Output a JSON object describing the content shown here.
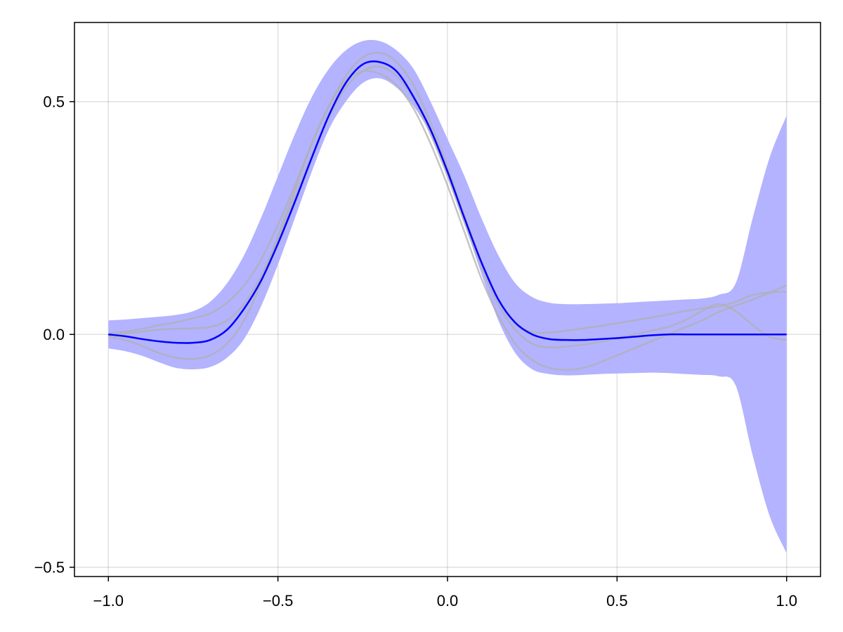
{
  "chart_data": {
    "type": "line",
    "title": "",
    "xlabel": "",
    "ylabel": "",
    "xlim": [
      -1.1,
      1.1
    ],
    "ylim": [
      -0.52,
      0.67
    ],
    "grid": true,
    "x_ticks": [
      -1.0,
      -0.5,
      0.0,
      0.5,
      1.0
    ],
    "x_tick_labels": [
      "−1.0",
      "−0.5",
      "0.0",
      "0.5",
      "1.0"
    ],
    "y_ticks": [
      -0.5,
      0.0,
      0.5
    ],
    "y_tick_labels": [
      "−0.5",
      "0.0",
      "0.5"
    ],
    "colors": {
      "mean": "#0000ff",
      "band": "#b3b3ff",
      "samples": "#b0b0b0"
    },
    "x": [
      -1.0,
      -0.95,
      -0.9,
      -0.85,
      -0.8,
      -0.75,
      -0.7,
      -0.65,
      -0.6,
      -0.55,
      -0.5,
      -0.45,
      -0.4,
      -0.35,
      -0.3,
      -0.25,
      -0.2,
      -0.15,
      -0.1,
      -0.05,
      0.0,
      0.05,
      0.1,
      0.15,
      0.2,
      0.25,
      0.3,
      0.35,
      0.4,
      0.45,
      0.5,
      0.55,
      0.6,
      0.65,
      0.7,
      0.75,
      0.8,
      0.85,
      0.9,
      0.95,
      1.0
    ],
    "band": {
      "upper": [
        0.03,
        0.032,
        0.035,
        0.038,
        0.042,
        0.05,
        0.07,
        0.11,
        0.17,
        0.25,
        0.34,
        0.43,
        0.51,
        0.57,
        0.61,
        0.63,
        0.63,
        0.61,
        0.57,
        0.5,
        0.42,
        0.34,
        0.25,
        0.17,
        0.11,
        0.08,
        0.068,
        0.065,
        0.065,
        0.066,
        0.067,
        0.069,
        0.071,
        0.073,
        0.075,
        0.077,
        0.085,
        0.11,
        0.25,
        0.38,
        0.47
      ],
      "lower": [
        -0.03,
        -0.036,
        -0.046,
        -0.06,
        -0.072,
        -0.075,
        -0.07,
        -0.05,
        -0.01,
        0.06,
        0.15,
        0.25,
        0.35,
        0.44,
        0.5,
        0.54,
        0.55,
        0.53,
        0.49,
        0.43,
        0.34,
        0.24,
        0.13,
        0.03,
        -0.04,
        -0.075,
        -0.085,
        -0.088,
        -0.087,
        -0.085,
        -0.084,
        -0.083,
        -0.082,
        -0.083,
        -0.085,
        -0.087,
        -0.09,
        -0.11,
        -0.26,
        -0.39,
        -0.47
      ]
    },
    "series": [
      {
        "values": [
          0.0,
          -0.004,
          -0.01,
          -0.015,
          -0.018,
          -0.018,
          -0.012,
          0.01,
          0.055,
          0.115,
          0.195,
          0.285,
          0.38,
          0.47,
          0.54,
          0.58,
          0.585,
          0.565,
          0.51,
          0.44,
          0.35,
          0.25,
          0.155,
          0.075,
          0.025,
          0.0,
          -0.01,
          -0.012,
          -0.012,
          -0.01,
          -0.008,
          -0.005,
          -0.002,
          0.0,
          0.0,
          0.0,
          0.0,
          0.0,
          0.0,
          0.0,
          0.0
        ],
        "role": "mean"
      },
      {
        "values": [
          -0.005,
          -0.012,
          -0.025,
          -0.04,
          -0.05,
          -0.053,
          -0.045,
          -0.02,
          0.03,
          0.11,
          0.21,
          0.31,
          0.41,
          0.49,
          0.545,
          0.565,
          0.56,
          0.535,
          0.485,
          0.41,
          0.32,
          0.22,
          0.12,
          0.04,
          -0.02,
          -0.055,
          -0.072,
          -0.076,
          -0.072,
          -0.06,
          -0.045,
          -0.03,
          -0.015,
          0.0,
          0.015,
          0.03,
          0.048,
          0.062,
          0.075,
          0.09,
          0.105
        ],
        "role": "sample"
      },
      {
        "values": [
          0.002,
          0.006,
          0.012,
          0.02,
          0.026,
          0.035,
          0.045,
          0.068,
          0.105,
          0.16,
          0.235,
          0.32,
          0.41,
          0.49,
          0.555,
          0.595,
          0.605,
          0.585,
          0.535,
          0.455,
          0.36,
          0.255,
          0.155,
          0.075,
          0.025,
          0.005,
          0.004,
          0.008,
          0.013,
          0.018,
          0.024,
          0.03,
          0.036,
          0.043,
          0.05,
          0.056,
          0.06,
          0.07,
          0.085,
          0.09,
          0.092
        ],
        "role": "sample"
      },
      {
        "values": [
          -0.002,
          0.002,
          0.006,
          0.01,
          0.012,
          0.013,
          0.016,
          0.03,
          0.065,
          0.125,
          0.205,
          0.295,
          0.385,
          0.465,
          0.53,
          0.565,
          0.575,
          0.555,
          0.505,
          0.43,
          0.34,
          0.24,
          0.145,
          0.065,
          0.01,
          -0.02,
          -0.028,
          -0.026,
          -0.022,
          -0.016,
          -0.008,
          0.0,
          0.008,
          0.016,
          0.03,
          0.05,
          0.065,
          0.05,
          0.02,
          -0.005,
          -0.012
        ],
        "role": "sample"
      }
    ]
  }
}
